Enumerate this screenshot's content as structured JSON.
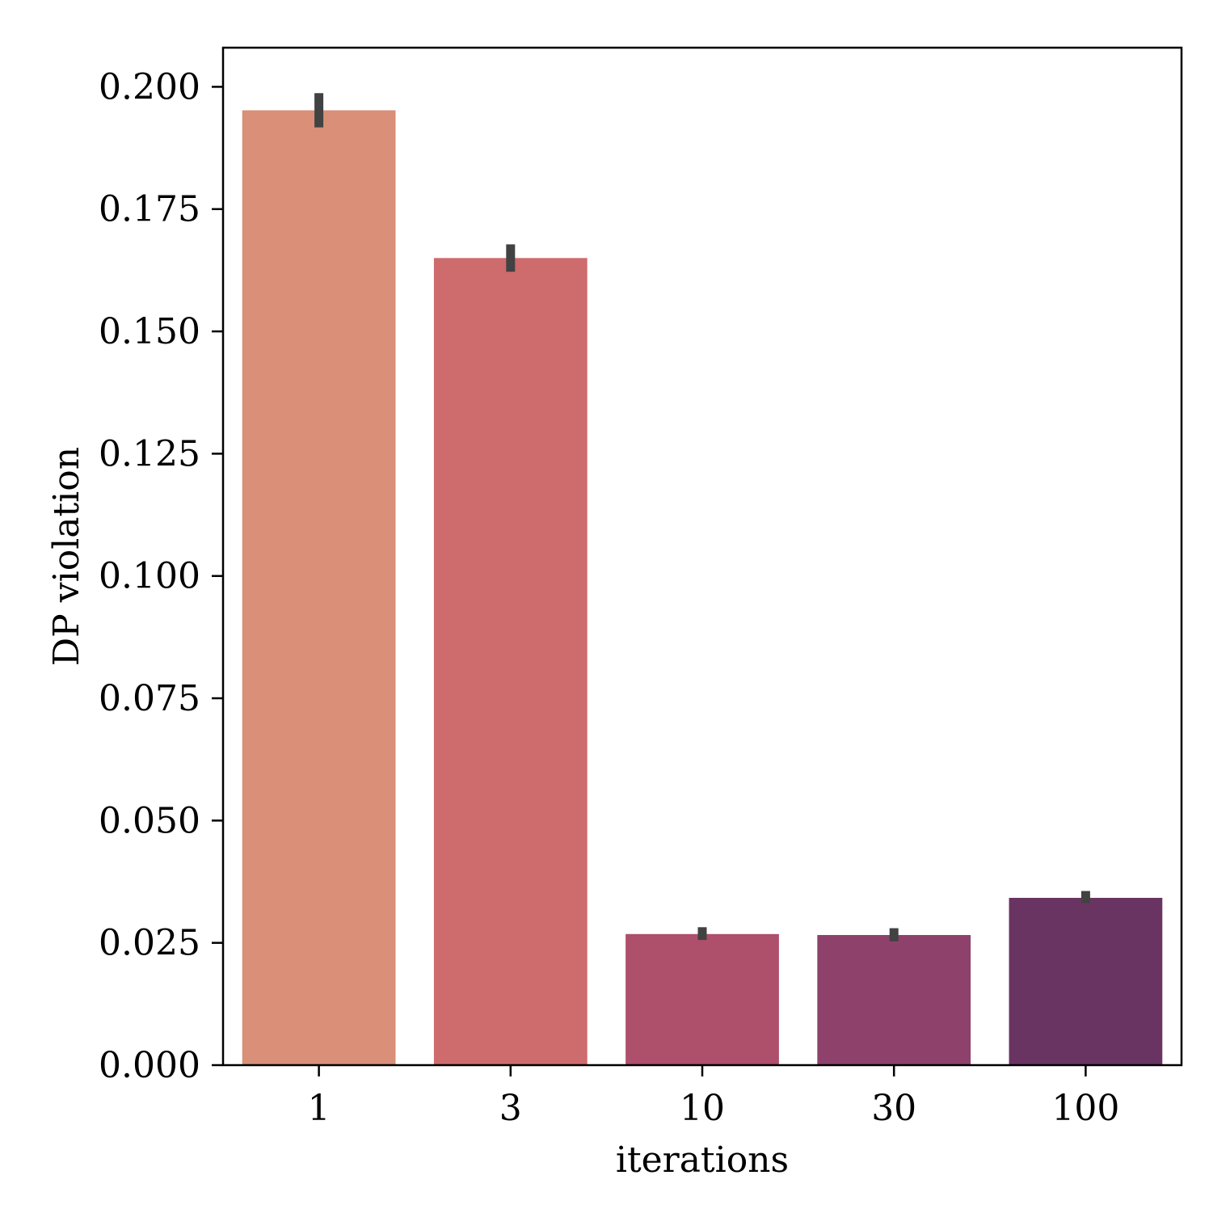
{
  "chart_data": {
    "type": "bar",
    "title": "",
    "xlabel": "iterations",
    "ylabel": "DP violation",
    "categories": [
      "1",
      "3",
      "10",
      "30",
      "100"
    ],
    "values": [
      0.1952,
      0.165,
      0.0268,
      0.0266,
      0.0342
    ],
    "error_low": [
      0.1917,
      0.1622,
      0.0256,
      0.0253,
      0.0331
    ],
    "error_high": [
      0.1987,
      0.1678,
      0.0282,
      0.028,
      0.0356
    ],
    "ylim": [
      0,
      0.208
    ],
    "yticks": [
      0.0,
      0.025,
      0.05,
      0.075,
      0.1,
      0.125,
      0.15,
      0.175,
      0.2
    ],
    "ytick_labels": [
      "0.000",
      "0.025",
      "0.050",
      "0.075",
      "0.100",
      "0.125",
      "0.150",
      "0.175",
      "0.200"
    ],
    "colors": [
      "#d98f78",
      "#ce6b6c",
      "#ae4f6c",
      "#8e426b",
      "#6a3462"
    ],
    "errorbar_color": "#424242",
    "grid": false,
    "legend": "none"
  }
}
